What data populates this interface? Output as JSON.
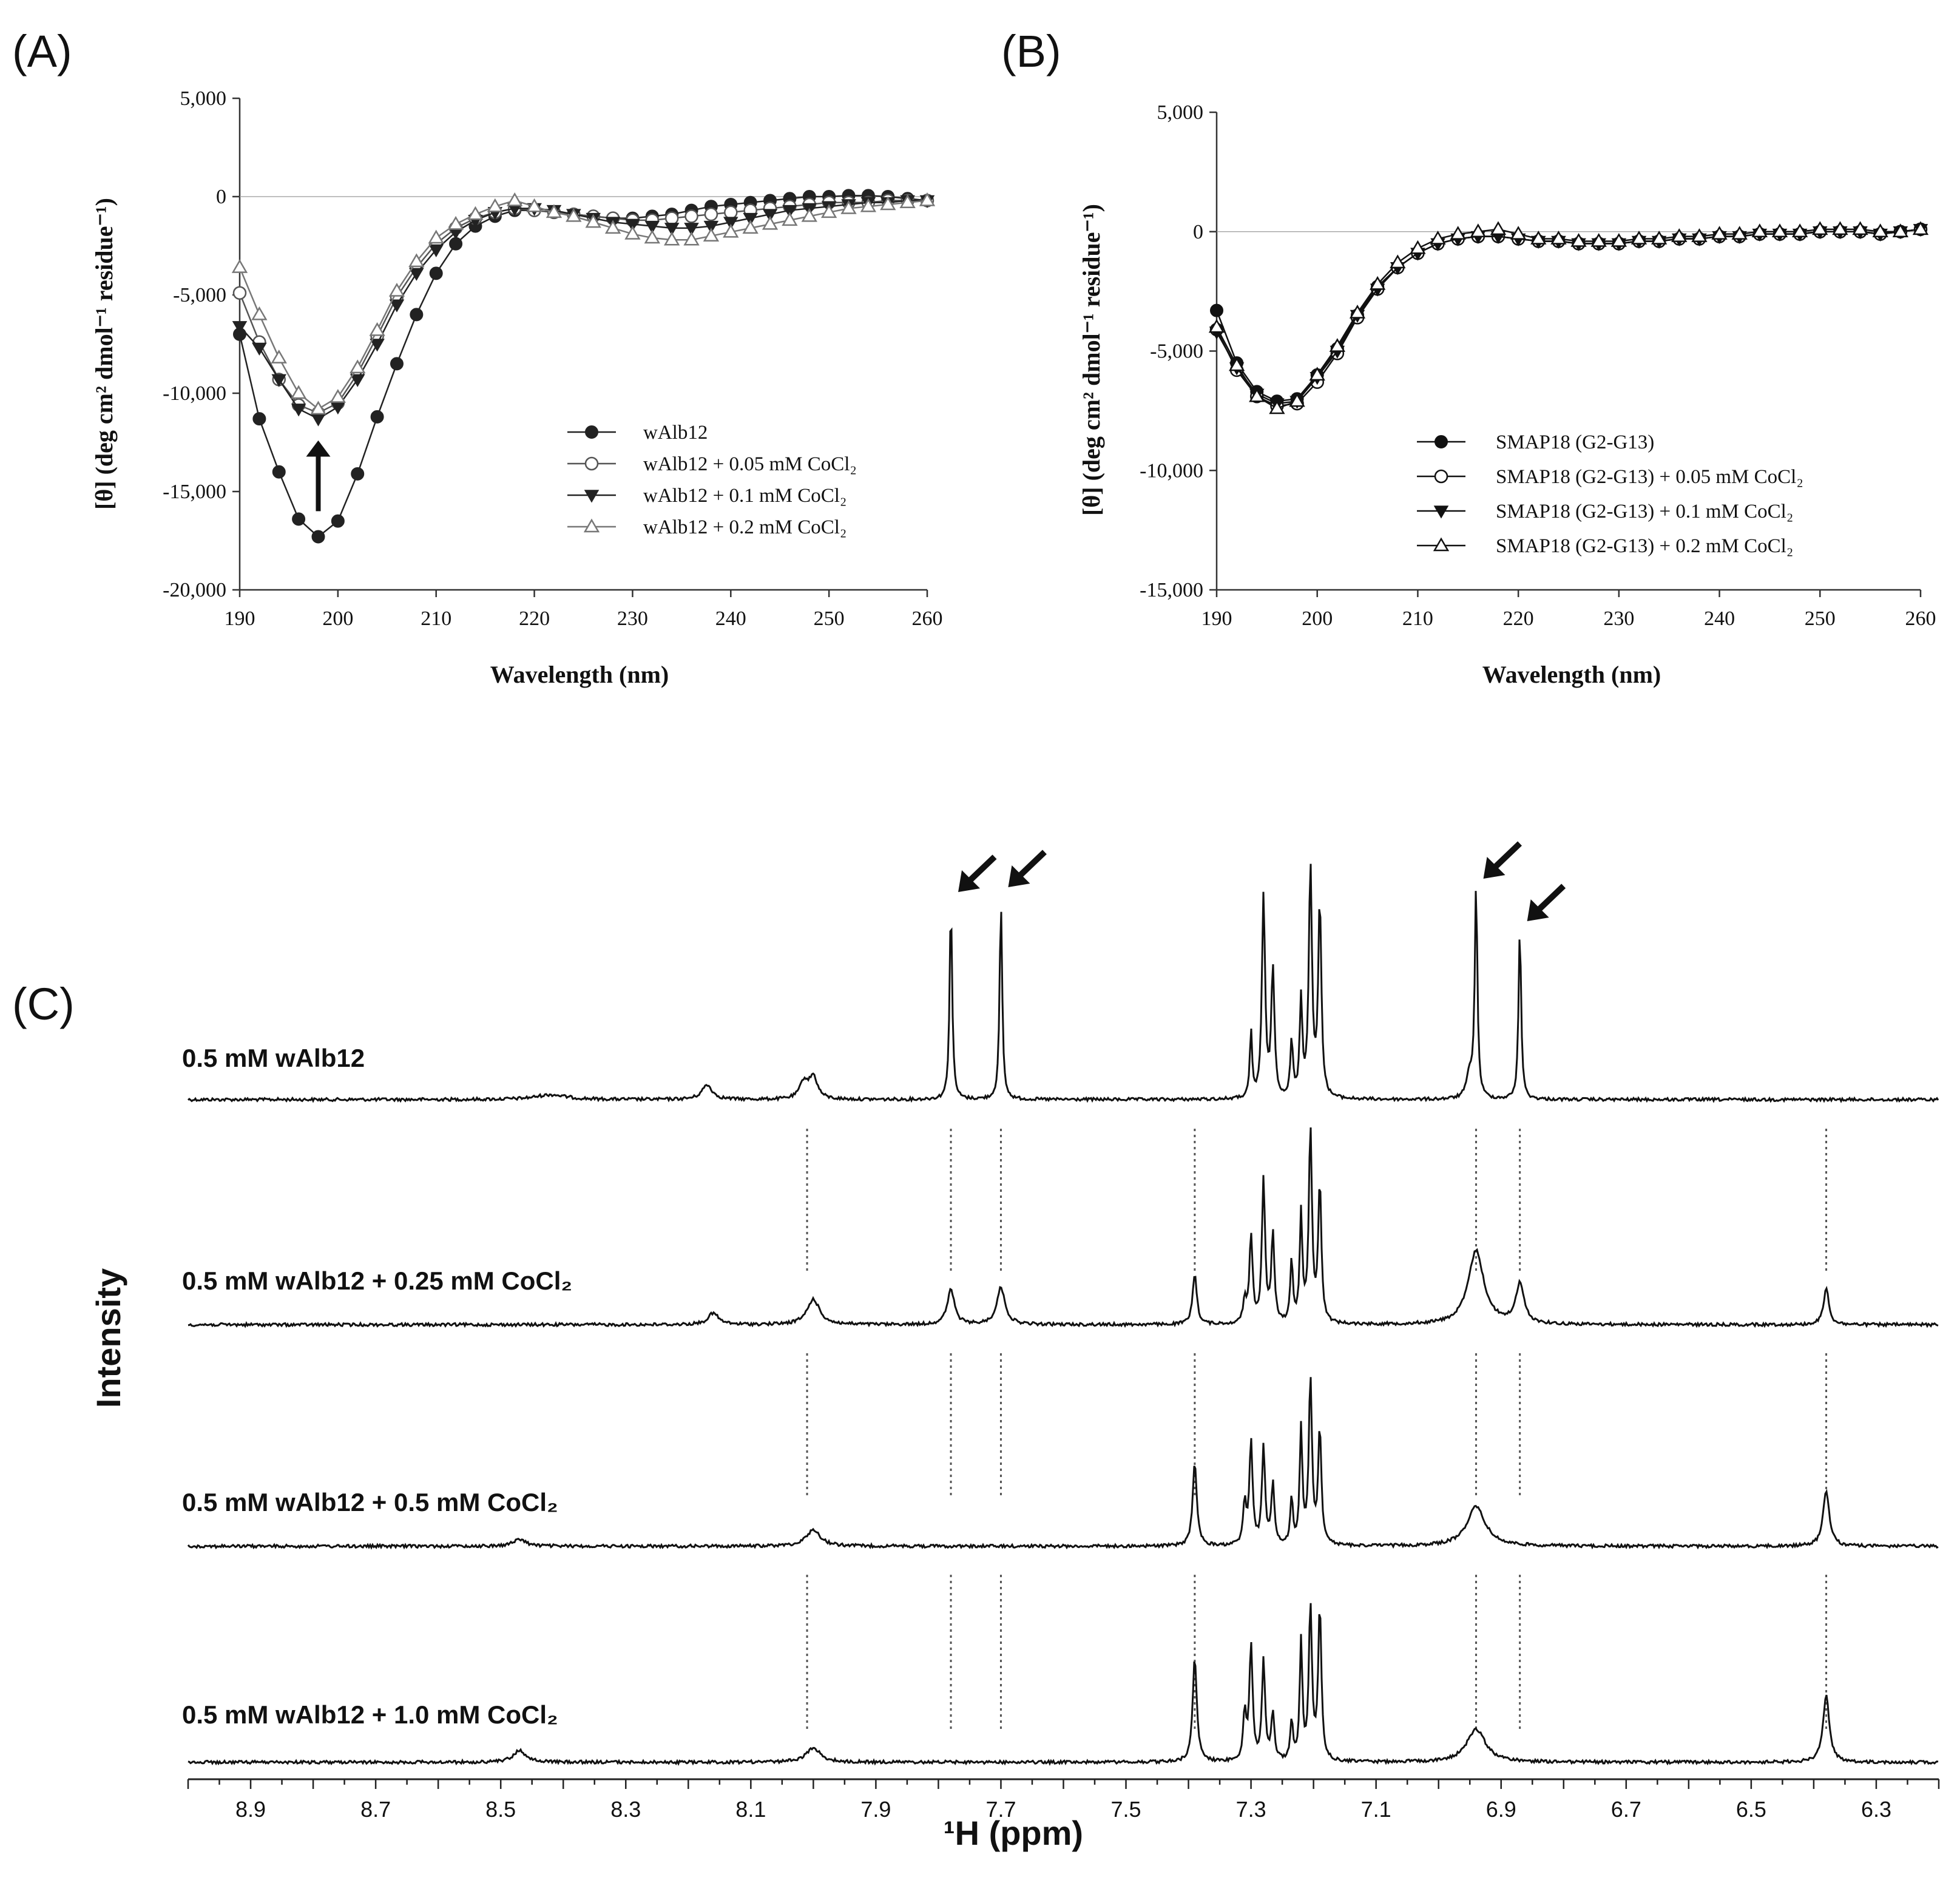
{
  "panel_labels": [
    "(A)",
    "(B)",
    "(C)"
  ],
  "chart_data": [
    {
      "type": "line",
      "panel": "(A)",
      "xlabel": "Wavelength (nm)",
      "ylabel": "[θ] (deg cm² dmol⁻¹ residue⁻¹)",
      "xlim": [
        190,
        260
      ],
      "ylim": [
        -20000,
        5000
      ],
      "x_ticks": [
        "190",
        "200",
        "210",
        "220",
        "230",
        "240",
        "250",
        "260"
      ],
      "y_ticks": [
        "5,000",
        "0",
        "-5,000",
        "-10,000",
        "-15,000",
        "-20,000"
      ],
      "legend_position": "center-right",
      "annotation": "upward arrow at 198 nm",
      "x": [
        190,
        192,
        194,
        196,
        198,
        200,
        202,
        204,
        206,
        208,
        210,
        212,
        214,
        216,
        218,
        220,
        222,
        224,
        226,
        228,
        230,
        232,
        234,
        236,
        238,
        240,
        242,
        244,
        246,
        248,
        250,
        252,
        254,
        256,
        258,
        260
      ],
      "series": [
        {
          "name": "wAlb12",
          "marker": "filled-circle",
          "color": "#222222",
          "values": [
            -7000,
            -11300,
            -14000,
            -16400,
            -17300,
            -16500,
            -14100,
            -11200,
            -8500,
            -6000,
            -3900,
            -2400,
            -1500,
            -1000,
            -700,
            -700,
            -800,
            -900,
            -1000,
            -1100,
            -1100,
            -1000,
            -900,
            -700,
            -500,
            -400,
            -300,
            -200,
            -100,
            0,
            0,
            50,
            50,
            0,
            -100,
            -200
          ]
        },
        {
          "name": "wAlb12 + 0.05 mM CoCl₂",
          "marker": "open-circle",
          "color": "#555555",
          "values": [
            -4900,
            -7400,
            -9300,
            -10600,
            -11000,
            -10500,
            -9000,
            -7100,
            -5100,
            -3600,
            -2400,
            -1600,
            -1100,
            -800,
            -600,
            -700,
            -800,
            -900,
            -1000,
            -1100,
            -1200,
            -1200,
            -1100,
            -1000,
            -900,
            -800,
            -700,
            -600,
            -500,
            -400,
            -300,
            -300,
            -300,
            -200,
            -200,
            -200
          ]
        },
        {
          "name": "wAlb12 + 0.1 mM CoCl₂",
          "marker": "filled-triangle-down",
          "color": "#222222",
          "values": [
            -6600,
            -7700,
            -9300,
            -10800,
            -11300,
            -10700,
            -9300,
            -7500,
            -5500,
            -3900,
            -2700,
            -1800,
            -1200,
            -800,
            -600,
            -600,
            -700,
            -900,
            -1100,
            -1300,
            -1400,
            -1500,
            -1600,
            -1600,
            -1500,
            -1300,
            -1100,
            -900,
            -700,
            -600,
            -500,
            -400,
            -300,
            -300,
            -200,
            -200
          ]
        },
        {
          "name": "wAlb12 + 0.2 mM CoCl₂",
          "marker": "open-triangle-up",
          "color": "#777777",
          "values": [
            -3600,
            -6000,
            -8200,
            -10000,
            -10800,
            -10200,
            -8700,
            -6800,
            -4800,
            -3300,
            -2100,
            -1400,
            -900,
            -500,
            -200,
            -500,
            -800,
            -1000,
            -1300,
            -1600,
            -1900,
            -2100,
            -2200,
            -2200,
            -2000,
            -1800,
            -1600,
            -1400,
            -1200,
            -1000,
            -800,
            -600,
            -500,
            -400,
            -300,
            -200
          ]
        }
      ]
    },
    {
      "type": "line",
      "panel": "(B)",
      "xlabel": "Wavelength (nm)",
      "ylabel": "[θ] (deg cm² dmol⁻¹ residue⁻¹)",
      "xlim": [
        190,
        260
      ],
      "ylim": [
        -15000,
        5000
      ],
      "x_ticks": [
        "190",
        "200",
        "210",
        "220",
        "230",
        "240",
        "250",
        "260"
      ],
      "y_ticks": [
        "5,000",
        "0",
        "-5,000",
        "-10,000",
        "-15,000"
      ],
      "legend_position": "bottom-right",
      "x": [
        190,
        192,
        194,
        196,
        198,
        200,
        202,
        204,
        206,
        208,
        210,
        212,
        214,
        216,
        218,
        220,
        222,
        224,
        226,
        228,
        230,
        232,
        234,
        236,
        238,
        240,
        242,
        244,
        246,
        248,
        250,
        252,
        254,
        256,
        258,
        260
      ],
      "series": [
        {
          "name": "SMAP18 (G2-G13)",
          "marker": "filled-circle",
          "color": "#111111",
          "values": [
            -3300,
            -5500,
            -6700,
            -7100,
            -7000,
            -6000,
            -4900,
            -3500,
            -2300,
            -1500,
            -900,
            -500,
            -300,
            -200,
            -200,
            -300,
            -400,
            -400,
            -500,
            -500,
            -500,
            -400,
            -400,
            -300,
            -300,
            -200,
            -200,
            -100,
            -100,
            -100,
            0,
            0,
            0,
            -100,
            0,
            100
          ]
        },
        {
          "name": "SMAP18 (G2-G13) + 0.05 mM CoCl₂",
          "marker": "open-circle",
          "color": "#111111",
          "values": [
            -4100,
            -5800,
            -6900,
            -7300,
            -7200,
            -6300,
            -5100,
            -3600,
            -2400,
            -1500,
            -900,
            -500,
            -300,
            -200,
            -200,
            -300,
            -400,
            -400,
            -500,
            -500,
            -500,
            -400,
            -400,
            -300,
            -300,
            -200,
            -200,
            -100,
            -100,
            -100,
            0,
            0,
            0,
            -100,
            0,
            100
          ]
        },
        {
          "name": "SMAP18 (G2-G13) + 0.1 mM CoCl₂",
          "marker": "filled-triangle-down",
          "color": "#111111",
          "values": [
            -4200,
            -5700,
            -6800,
            -7200,
            -7100,
            -6100,
            -5000,
            -3500,
            -2400,
            -1500,
            -900,
            -500,
            -300,
            -200,
            -200,
            -300,
            -400,
            -400,
            -500,
            -500,
            -500,
            -400,
            -400,
            -300,
            -300,
            -200,
            -200,
            -100,
            -100,
            -100,
            0,
            0,
            0,
            -100,
            0,
            100
          ]
        },
        {
          "name": "SMAP18 (G2-G13) + 0.2 mM CoCl₂",
          "marker": "open-triangle-up",
          "color": "#111111",
          "values": [
            -4000,
            -5600,
            -6900,
            -7400,
            -7100,
            -6000,
            -4800,
            -3400,
            -2200,
            -1300,
            -700,
            -300,
            -100,
            0,
            100,
            -100,
            -300,
            -300,
            -400,
            -400,
            -400,
            -300,
            -300,
            -200,
            -200,
            -100,
            -100,
            0,
            0,
            0,
            100,
            100,
            100,
            0,
            0,
            100
          ]
        }
      ]
    },
    {
      "type": "line",
      "panel": "(C)",
      "xlabel": "¹H (ppm)",
      "ylabel": "Intensity",
      "xlim": [
        9.0,
        6.2
      ],
      "x_ticks": [
        "8.9",
        "8.7",
        "8.5",
        "8.3",
        "8.1",
        "7.9",
        "7.7",
        "7.5",
        "7.3",
        "7.1",
        "6.9",
        "6.7",
        "6.5",
        "6.3"
      ],
      "reference_lines_ppm": [
        8.01,
        7.78,
        7.7,
        7.39,
        6.94,
        6.87,
        6.38
      ],
      "arrow_peaks_ppm": [
        7.78,
        7.7,
        6.94,
        6.87
      ],
      "series": [
        {
          "name": "0.5 mM wAlb12",
          "peaks": [
            {
              "ppm": 8.42,
              "h": 0.02,
              "w": 0.03
            },
            {
              "ppm": 8.17,
              "h": 0.06,
              "w": 0.01
            },
            {
              "ppm": 8.015,
              "h": 0.07,
              "w": 0.008
            },
            {
              "ppm": 8.0,
              "h": 0.09,
              "w": 0.008
            },
            {
              "ppm": 7.78,
              "h": 0.8,
              "w": 0.0025
            },
            {
              "ppm": 7.7,
              "h": 0.8,
              "w": 0.0025
            },
            {
              "ppm": 7.3,
              "h": 0.27,
              "w": 0.0022
            },
            {
              "ppm": 7.28,
              "h": 0.83,
              "w": 0.003
            },
            {
              "ppm": 7.265,
              "h": 0.53,
              "w": 0.003
            },
            {
              "ppm": 7.235,
              "h": 0.23,
              "w": 0.0025
            },
            {
              "ppm": 7.22,
              "h": 0.4,
              "w": 0.0025
            },
            {
              "ppm": 7.205,
              "h": 0.95,
              "w": 0.003
            },
            {
              "ppm": 7.19,
              "h": 0.8,
              "w": 0.003
            },
            {
              "ppm": 6.95,
              "h": 0.1,
              "w": 0.006
            },
            {
              "ppm": 6.94,
              "h": 0.86,
              "w": 0.0025
            },
            {
              "ppm": 6.87,
              "h": 0.7,
              "w": 0.0025
            }
          ]
        },
        {
          "name": "0.5 mM wAlb12 + 0.25 mM CoCl₂",
          "peaks": [
            {
              "ppm": 8.16,
              "h": 0.05,
              "w": 0.01
            },
            {
              "ppm": 8.0,
              "h": 0.11,
              "w": 0.012
            },
            {
              "ppm": 7.78,
              "h": 0.15,
              "w": 0.007
            },
            {
              "ppm": 7.7,
              "h": 0.16,
              "w": 0.008
            },
            {
              "ppm": 7.39,
              "h": 0.22,
              "w": 0.004
            },
            {
              "ppm": 7.31,
              "h": 0.1,
              "w": 0.003
            },
            {
              "ppm": 7.3,
              "h": 0.38,
              "w": 0.003
            },
            {
              "ppm": 7.28,
              "h": 0.62,
              "w": 0.003
            },
            {
              "ppm": 7.265,
              "h": 0.38,
              "w": 0.003
            },
            {
              "ppm": 7.235,
              "h": 0.27,
              "w": 0.0025
            },
            {
              "ppm": 7.22,
              "h": 0.47,
              "w": 0.0025
            },
            {
              "ppm": 7.205,
              "h": 0.84,
              "w": 0.003
            },
            {
              "ppm": 7.19,
              "h": 0.6,
              "w": 0.003
            },
            {
              "ppm": 6.94,
              "h": 0.32,
              "w": 0.015
            },
            {
              "ppm": 6.87,
              "h": 0.17,
              "w": 0.008
            },
            {
              "ppm": 6.38,
              "h": 0.16,
              "w": 0.005
            }
          ]
        },
        {
          "name": "0.5 mM wAlb12 + 0.5 mM CoCl₂",
          "peaks": [
            {
              "ppm": 8.47,
              "h": 0.03,
              "w": 0.012
            },
            {
              "ppm": 8.0,
              "h": 0.07,
              "w": 0.014
            },
            {
              "ppm": 7.39,
              "h": 0.36,
              "w": 0.004
            },
            {
              "ppm": 7.31,
              "h": 0.18,
              "w": 0.003
            },
            {
              "ppm": 7.3,
              "h": 0.45,
              "w": 0.003
            },
            {
              "ppm": 7.28,
              "h": 0.42,
              "w": 0.003
            },
            {
              "ppm": 7.265,
              "h": 0.26,
              "w": 0.003
            },
            {
              "ppm": 7.235,
              "h": 0.2,
              "w": 0.0025
            },
            {
              "ppm": 7.22,
              "h": 0.5,
              "w": 0.0025
            },
            {
              "ppm": 7.205,
              "h": 0.72,
              "w": 0.003
            },
            {
              "ppm": 7.19,
              "h": 0.5,
              "w": 0.003
            },
            {
              "ppm": 6.94,
              "h": 0.17,
              "w": 0.018
            },
            {
              "ppm": 6.38,
              "h": 0.24,
              "w": 0.006
            }
          ]
        },
        {
          "name": "0.5 mM wAlb12 + 1.0 mM CoCl₂",
          "peaks": [
            {
              "ppm": 8.47,
              "h": 0.05,
              "w": 0.012
            },
            {
              "ppm": 8.0,
              "h": 0.06,
              "w": 0.014
            },
            {
              "ppm": 7.39,
              "h": 0.44,
              "w": 0.004
            },
            {
              "ppm": 7.31,
              "h": 0.2,
              "w": 0.003
            },
            {
              "ppm": 7.3,
              "h": 0.49,
              "w": 0.003
            },
            {
              "ppm": 7.28,
              "h": 0.42,
              "w": 0.003
            },
            {
              "ppm": 7.265,
              "h": 0.2,
              "w": 0.003
            },
            {
              "ppm": 7.235,
              "h": 0.17,
              "w": 0.0025
            },
            {
              "ppm": 7.22,
              "h": 0.5,
              "w": 0.0025
            },
            {
              "ppm": 7.205,
              "h": 0.65,
              "w": 0.003
            },
            {
              "ppm": 7.19,
              "h": 0.65,
              "w": 0.003
            },
            {
              "ppm": 6.94,
              "h": 0.14,
              "w": 0.018
            },
            {
              "ppm": 6.38,
              "h": 0.28,
              "w": 0.006
            }
          ]
        }
      ]
    }
  ]
}
